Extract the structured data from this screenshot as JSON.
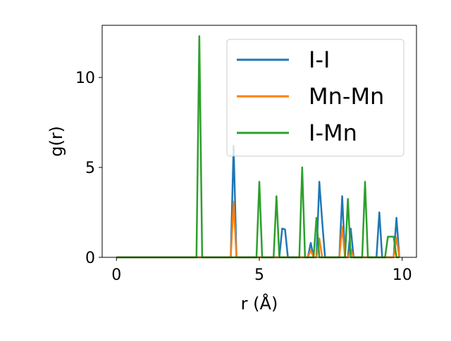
{
  "chart_data": {
    "type": "line",
    "title": "",
    "xlabel": "r (Å)",
    "ylabel": "g(r)",
    "xlim": [
      -0.5,
      10.5
    ],
    "ylim": [
      0,
      12.9
    ],
    "xticks": [
      0,
      5,
      10
    ],
    "yticks": [
      0,
      5,
      10
    ],
    "grid": false,
    "legend_position": "top-right",
    "series": [
      {
        "name": "I-I",
        "color": "#1f77b4",
        "x": [
          0,
          3.9,
          4.0,
          4.1,
          4.2,
          4.3,
          5.7,
          5.8,
          5.9,
          6.0,
          6.7,
          6.8,
          6.9,
          7.0,
          7.1,
          7.2,
          7.3,
          7.8,
          7.9,
          8.0,
          8.1,
          8.2,
          8.3,
          9.1,
          9.2,
          9.3,
          9.7,
          9.8,
          9.9
        ],
        "y": [
          0,
          0,
          0,
          6.2,
          0,
          0,
          0,
          1.6,
          1.55,
          0,
          0,
          0.8,
          0,
          0,
          4.2,
          2.0,
          0,
          0,
          3.4,
          0,
          0,
          1.6,
          0,
          0,
          2.5,
          0,
          0,
          2.2,
          0
        ]
      },
      {
        "name": "Mn-Mn",
        "color": "#ff7f0e",
        "x": [
          0,
          4.0,
          4.1,
          4.2,
          6.7,
          6.8,
          6.9,
          7.0,
          7.1,
          7.2,
          7.8,
          7.9,
          8.0,
          8.1,
          8.2,
          8.3,
          9.7,
          9.8,
          9.9
        ],
        "y": [
          0,
          0,
          3.1,
          0,
          0,
          0.4,
          0,
          0,
          1.05,
          0,
          0,
          1.7,
          0,
          0,
          0.45,
          0,
          0,
          1.1,
          0
        ]
      },
      {
        "name": "I-Mn",
        "color": "#2ca02c",
        "x": [
          0,
          2.8,
          2.9,
          3.0,
          4.9,
          5.0,
          5.1,
          5.5,
          5.6,
          5.7,
          6.4,
          6.5,
          6.6,
          6.9,
          7.0,
          7.1,
          7.2,
          8.0,
          8.1,
          8.2,
          8.6,
          8.7,
          8.8,
          9.4,
          9.5,
          9.6,
          9.7,
          9.8,
          9.9
        ],
        "y": [
          0,
          0,
          12.3,
          0,
          0,
          4.2,
          0,
          0,
          3.4,
          0,
          0,
          5.0,
          0,
          0,
          2.2,
          0,
          0,
          0,
          3.25,
          0,
          0,
          4.2,
          0,
          0,
          1.15,
          1.15,
          1.15,
          0,
          0
        ]
      }
    ]
  }
}
